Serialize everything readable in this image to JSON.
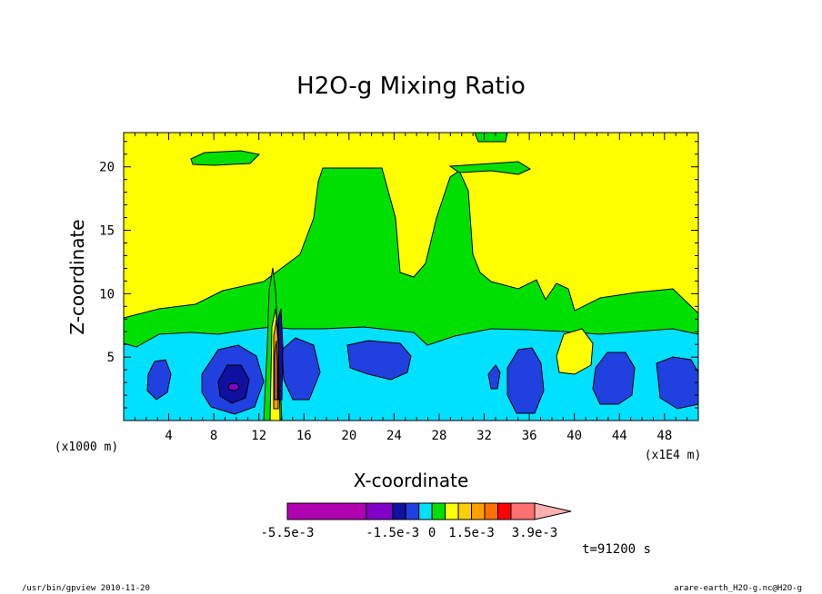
{
  "chart_data": {
    "type": "heatmap",
    "title": "H2O-g Mixing Ratio",
    "xlabel": "X-coordinate",
    "ylabel": "Z-coordinate",
    "x_unit_left": "(x1000 m)",
    "x_unit_right": "(x1E4 m)",
    "xlim": [
      0,
      51
    ],
    "ylim": [
      0,
      22.7
    ],
    "x_ticks": [
      "4",
      "8",
      "12",
      "16",
      "20",
      "24",
      "28",
      "32",
      "36",
      "40",
      "44",
      "48"
    ],
    "y_ticks": [
      "5",
      "10",
      "15",
      "20"
    ],
    "x_tick_values": [
      4,
      8,
      12,
      16,
      20,
      24,
      28,
      32,
      36,
      40,
      44,
      48
    ],
    "y_tick_values": [
      5,
      10,
      15,
      20
    ],
    "colorbar": {
      "labels": [
        "-5.5e-3",
        "-1.5e-3",
        "0",
        "1.5e-3",
        "3.9e-3"
      ],
      "label_values": [
        -0.0055,
        -0.0015,
        0,
        0.0015,
        0.0039
      ],
      "bounds": [
        -0.0055,
        -0.0025,
        -0.0015,
        -0.001,
        -0.0005,
        0,
        0.0005,
        0.001,
        0.0015,
        0.002,
        0.0025,
        0.003,
        0.0039,
        0.005
      ],
      "colors": [
        "#b000b0",
        "#8000c8",
        "#1010a0",
        "#2040e0",
        "#00e0ff",
        "#00e000",
        "#ffff00",
        "#ffd000",
        "#ffa000",
        "#ff7000",
        "#ff0000",
        "#ff7070",
        "#ffb0b0"
      ]
    },
    "time_label": "t=91200 s",
    "grid": false,
    "legend": "bottom"
  },
  "footer": {
    "left": "/usr/bin/gpview  2010-11-20",
    "right": "arare-earth_H2O-g.nc@H2O-g"
  }
}
